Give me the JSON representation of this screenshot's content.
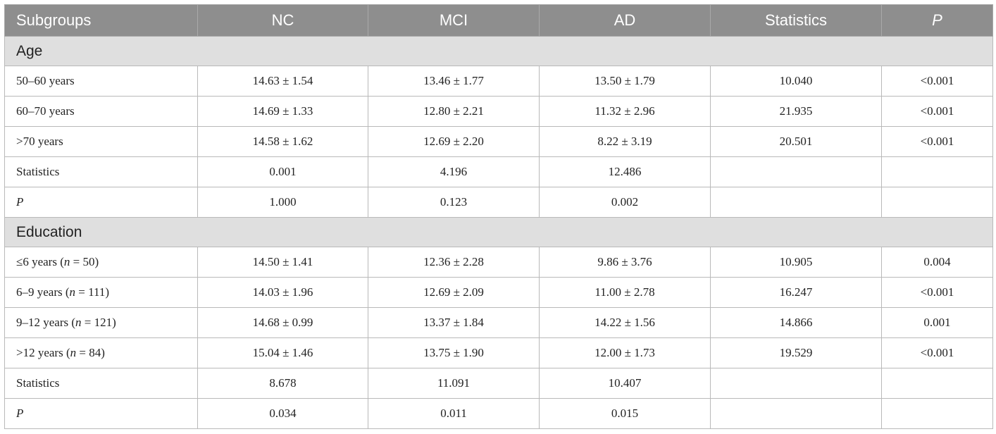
{
  "table": {
    "headers": [
      "Subgroups",
      "NC",
      "MCI",
      "AD",
      "Statistics",
      "P"
    ],
    "sections": [
      {
        "title": "Age",
        "rows": [
          {
            "label": "50–60 years",
            "n": null,
            "nc": "14.63 ± 1.54",
            "mci": "13.46 ± 1.77",
            "ad": "13.50 ± 1.79",
            "statistics": "10.040",
            "p": "<0.001"
          },
          {
            "label": "60–70 years",
            "n": null,
            "nc": "14.69 ± 1.33",
            "mci": "12.80 ± 2.21",
            "ad": "11.32 ± 2.96",
            "statistics": "21.935",
            "p": "<0.001"
          },
          {
            "label": ">70 years",
            "n": null,
            "nc": "14.58 ± 1.62",
            "mci": "12.69 ± 2.20",
            "ad": "8.22 ± 3.19",
            "statistics": "20.501",
            "p": "<0.001"
          },
          {
            "label": "Statistics",
            "n": null,
            "nc": "0.001",
            "mci": "4.196",
            "ad": "12.486",
            "statistics": "",
            "p": ""
          },
          {
            "label": "P",
            "italic": true,
            "n": null,
            "nc": "1.000",
            "mci": "0.123",
            "ad": "0.002",
            "statistics": "",
            "p": ""
          }
        ]
      },
      {
        "title": "Education",
        "rows": [
          {
            "label": "≤6 years",
            "n": "50",
            "nc": "14.50 ± 1.41",
            "mci": "12.36 ± 2.28",
            "ad": "9.86 ± 3.76",
            "statistics": "10.905",
            "p": "0.004"
          },
          {
            "label": "6–9 years",
            "n": "111",
            "nc": "14.03 ± 1.96",
            "mci": "12.69 ± 2.09",
            "ad": "11.00 ± 2.78",
            "statistics": "16.247",
            "p": "<0.001"
          },
          {
            "label": "9–12 years",
            "n": "121",
            "nc": "14.68 ± 0.99",
            "mci": "13.37 ± 1.84",
            "ad": "14.22 ± 1.56",
            "statistics": "14.866",
            "p": "0.001"
          },
          {
            "label": ">12 years",
            "n": "84",
            "nc": "15.04 ± 1.46",
            "mci": "13.75 ± 1.90",
            "ad": "12.00 ± 1.73",
            "statistics": "19.529",
            "p": "<0.001"
          },
          {
            "label": "Statistics",
            "n": null,
            "nc": "8.678",
            "mci": "11.091",
            "ad": "10.407",
            "statistics": "",
            "p": ""
          },
          {
            "label": "P",
            "italic": true,
            "n": null,
            "nc": "0.034",
            "mci": "0.011",
            "ad": "0.015",
            "statistics": "",
            "p": ""
          }
        ]
      }
    ]
  }
}
